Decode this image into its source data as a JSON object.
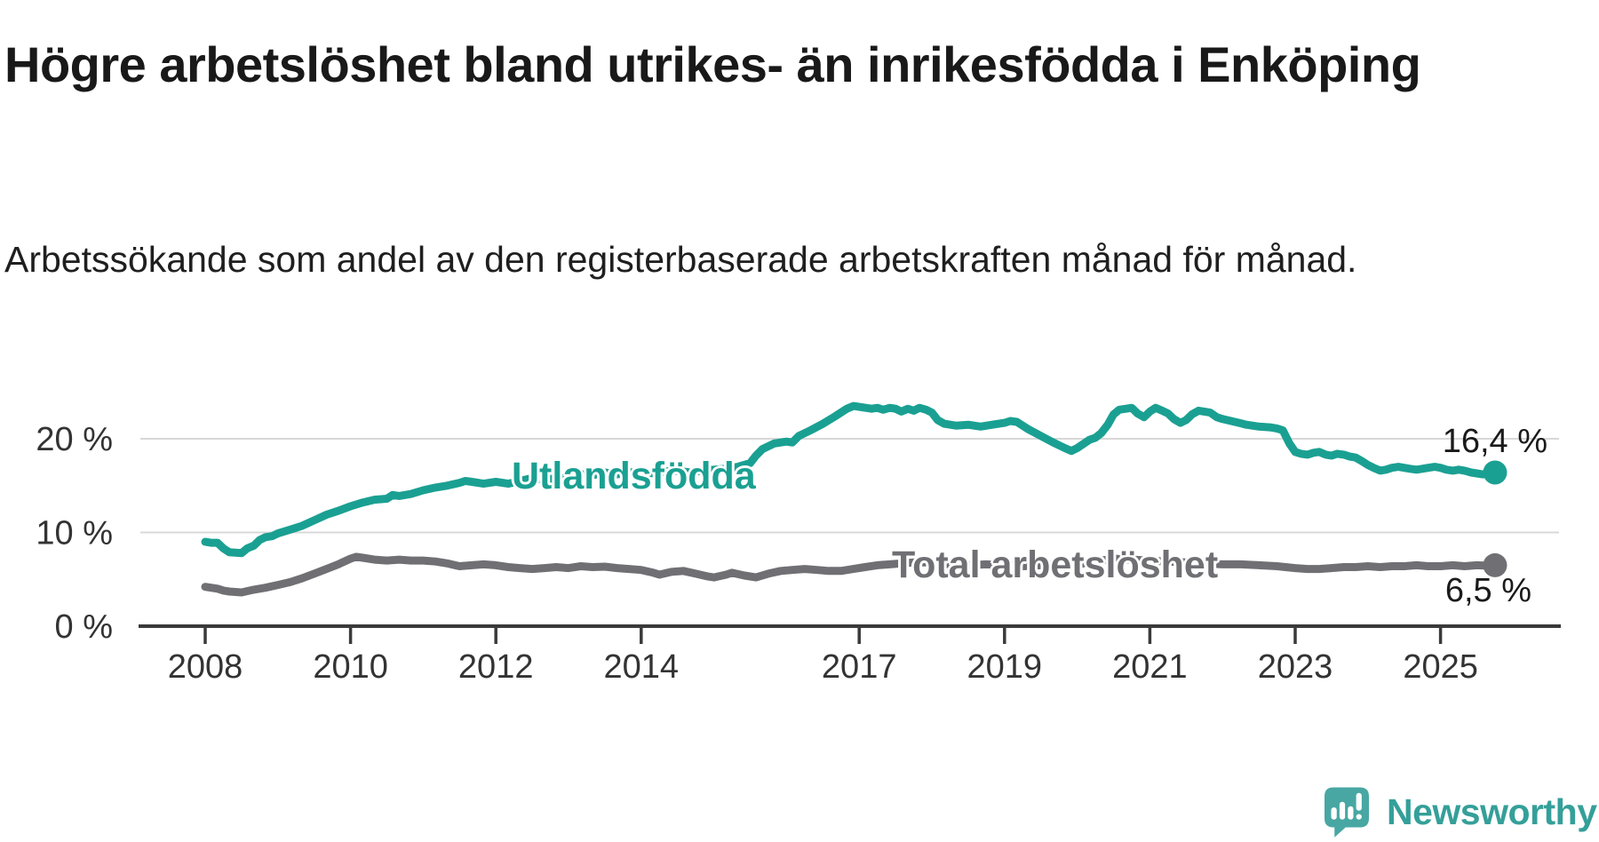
{
  "header": {
    "title": "Högre arbetslöshet bland utrikes- än inrikesfödda i Enköping",
    "subtitle": "Arbetssökande som andel av den registerbaserade arbetskraften månad för månad."
  },
  "colors": {
    "teal": "#1aa092",
    "gray": "#6f6f74",
    "grid": "#d8d8d8",
    "axis": "#3a3a3a",
    "tick_text": "#333333",
    "value_text": "#1a1a1a",
    "logo_icon": "#48a7a3",
    "logo_word": "#359f99"
  },
  "chart_data": {
    "type": "line",
    "unit": "%",
    "grid": true,
    "legend": "inline-labels-on-lines",
    "ylim": [
      0,
      25
    ],
    "xlim": [
      2007.1,
      2026.6
    ],
    "y_ticks": [
      {
        "value": 20,
        "label": "20 %"
      },
      {
        "value": 10,
        "label": "10 %"
      },
      {
        "value": 0,
        "label": "0 %"
      }
    ],
    "x_ticks": [
      {
        "value": 2008,
        "label": "2008"
      },
      {
        "value": 2010,
        "label": "2010"
      },
      {
        "value": 2012,
        "label": "2012"
      },
      {
        "value": 2014,
        "label": "2014"
      },
      {
        "value": 2017,
        "label": "2017"
      },
      {
        "value": 2019,
        "label": "2019"
      },
      {
        "value": 2021,
        "label": "2021"
      },
      {
        "value": 2023,
        "label": "2023"
      },
      {
        "value": 2025,
        "label": "2025"
      }
    ],
    "series": [
      {
        "name": "Utlandsfödda",
        "color_key": "teal",
        "end_value_label": "16,4 %",
        "points": [
          [
            2008.0,
            9.0
          ],
          [
            2008.08,
            8.9
          ],
          [
            2008.17,
            8.9
          ],
          [
            2008.25,
            8.3
          ],
          [
            2008.33,
            7.9
          ],
          [
            2008.5,
            7.8
          ],
          [
            2008.58,
            8.3
          ],
          [
            2008.67,
            8.6
          ],
          [
            2008.75,
            9.2
          ],
          [
            2008.83,
            9.5
          ],
          [
            2008.92,
            9.6
          ],
          [
            2009.0,
            9.9
          ],
          [
            2009.17,
            10.3
          ],
          [
            2009.33,
            10.7
          ],
          [
            2009.5,
            11.3
          ],
          [
            2009.67,
            11.9
          ],
          [
            2009.83,
            12.3
          ],
          [
            2010.0,
            12.8
          ],
          [
            2010.17,
            13.2
          ],
          [
            2010.33,
            13.5
          ],
          [
            2010.5,
            13.6
          ],
          [
            2010.58,
            14.0
          ],
          [
            2010.67,
            13.9
          ],
          [
            2010.83,
            14.1
          ],
          [
            2011.0,
            14.5
          ],
          [
            2011.17,
            14.8
          ],
          [
            2011.33,
            15.0
          ],
          [
            2011.5,
            15.3
          ],
          [
            2011.58,
            15.5
          ],
          [
            2011.67,
            15.4
          ],
          [
            2011.83,
            15.2
          ],
          [
            2012.0,
            15.4
          ],
          [
            2012.17,
            15.2
          ],
          [
            2012.33,
            15.5
          ],
          [
            2012.5,
            15.8
          ],
          [
            2012.67,
            15.6
          ],
          [
            2012.83,
            15.8
          ],
          [
            2013.0,
            16.0
          ],
          [
            2013.17,
            16.2
          ],
          [
            2013.33,
            16.1
          ],
          [
            2013.5,
            16.4
          ],
          [
            2013.67,
            16.2
          ],
          [
            2013.83,
            16.4
          ],
          [
            2014.0,
            16.5
          ],
          [
            2014.17,
            16.3
          ],
          [
            2014.33,
            16.5
          ],
          [
            2014.5,
            16.6
          ],
          [
            2014.67,
            16.4
          ],
          [
            2014.83,
            16.6
          ],
          [
            2015.0,
            16.7
          ],
          [
            2015.17,
            16.8
          ],
          [
            2015.33,
            17.0
          ],
          [
            2015.5,
            17.4
          ],
          [
            2015.58,
            18.2
          ],
          [
            2015.67,
            18.9
          ],
          [
            2015.83,
            19.5
          ],
          [
            2016.0,
            19.7
          ],
          [
            2016.08,
            19.6
          ],
          [
            2016.17,
            20.3
          ],
          [
            2016.33,
            20.9
          ],
          [
            2016.5,
            21.6
          ],
          [
            2016.67,
            22.4
          ],
          [
            2016.83,
            23.2
          ],
          [
            2016.92,
            23.5
          ],
          [
            2017.0,
            23.4
          ],
          [
            2017.17,
            23.2
          ],
          [
            2017.25,
            23.3
          ],
          [
            2017.33,
            23.1
          ],
          [
            2017.42,
            23.3
          ],
          [
            2017.5,
            23.2
          ],
          [
            2017.58,
            22.9
          ],
          [
            2017.67,
            23.2
          ],
          [
            2017.75,
            23.0
          ],
          [
            2017.83,
            23.3
          ],
          [
            2017.92,
            23.1
          ],
          [
            2018.0,
            22.8
          ],
          [
            2018.08,
            22.0
          ],
          [
            2018.17,
            21.6
          ],
          [
            2018.33,
            21.4
          ],
          [
            2018.5,
            21.5
          ],
          [
            2018.67,
            21.3
          ],
          [
            2018.83,
            21.5
          ],
          [
            2019.0,
            21.7
          ],
          [
            2019.08,
            21.9
          ],
          [
            2019.17,
            21.8
          ],
          [
            2019.33,
            21.0
          ],
          [
            2019.5,
            20.3
          ],
          [
            2019.67,
            19.6
          ],
          [
            2019.83,
            19.0
          ],
          [
            2019.92,
            18.7
          ],
          [
            2020.0,
            19.0
          ],
          [
            2020.17,
            19.9
          ],
          [
            2020.25,
            20.1
          ],
          [
            2020.33,
            20.6
          ],
          [
            2020.42,
            21.5
          ],
          [
            2020.5,
            22.6
          ],
          [
            2020.58,
            23.1
          ],
          [
            2020.67,
            23.2
          ],
          [
            2020.75,
            23.3
          ],
          [
            2020.83,
            22.7
          ],
          [
            2020.92,
            22.3
          ],
          [
            2021.0,
            22.9
          ],
          [
            2021.08,
            23.3
          ],
          [
            2021.17,
            23.0
          ],
          [
            2021.25,
            22.7
          ],
          [
            2021.33,
            22.1
          ],
          [
            2021.42,
            21.7
          ],
          [
            2021.5,
            22.0
          ],
          [
            2021.58,
            22.6
          ],
          [
            2021.67,
            23.0
          ],
          [
            2021.75,
            22.9
          ],
          [
            2021.83,
            22.8
          ],
          [
            2021.92,
            22.3
          ],
          [
            2022.0,
            22.1
          ],
          [
            2022.17,
            21.8
          ],
          [
            2022.33,
            21.5
          ],
          [
            2022.5,
            21.3
          ],
          [
            2022.67,
            21.2
          ],
          [
            2022.75,
            21.1
          ],
          [
            2022.83,
            20.9
          ],
          [
            2022.92,
            19.5
          ],
          [
            2023.0,
            18.6
          ],
          [
            2023.08,
            18.4
          ],
          [
            2023.17,
            18.3
          ],
          [
            2023.25,
            18.5
          ],
          [
            2023.33,
            18.6
          ],
          [
            2023.42,
            18.3
          ],
          [
            2023.5,
            18.2
          ],
          [
            2023.58,
            18.4
          ],
          [
            2023.67,
            18.3
          ],
          [
            2023.75,
            18.1
          ],
          [
            2023.83,
            18.0
          ],
          [
            2023.92,
            17.6
          ],
          [
            2024.0,
            17.2
          ],
          [
            2024.08,
            16.9
          ],
          [
            2024.17,
            16.6
          ],
          [
            2024.25,
            16.7
          ],
          [
            2024.33,
            16.9
          ],
          [
            2024.42,
            17.0
          ],
          [
            2024.5,
            16.9
          ],
          [
            2024.58,
            16.8
          ],
          [
            2024.67,
            16.7
          ],
          [
            2024.75,
            16.8
          ],
          [
            2024.83,
            16.9
          ],
          [
            2024.92,
            17.0
          ],
          [
            2025.0,
            16.9
          ],
          [
            2025.08,
            16.7
          ],
          [
            2025.17,
            16.6
          ],
          [
            2025.25,
            16.7
          ],
          [
            2025.33,
            16.6
          ],
          [
            2025.42,
            16.4
          ],
          [
            2025.5,
            16.3
          ],
          [
            2025.58,
            16.2
          ],
          [
            2025.67,
            16.3
          ],
          [
            2025.75,
            16.4
          ]
        ]
      },
      {
        "name": "Total arbetslöshet",
        "color_key": "gray",
        "end_value_label": "6,5 %",
        "points": [
          [
            2008.0,
            4.2
          ],
          [
            2008.08,
            4.1
          ],
          [
            2008.17,
            4.0
          ],
          [
            2008.25,
            3.8
          ],
          [
            2008.33,
            3.7
          ],
          [
            2008.5,
            3.6
          ],
          [
            2008.67,
            3.9
          ],
          [
            2008.83,
            4.1
          ],
          [
            2009.0,
            4.4
          ],
          [
            2009.17,
            4.7
          ],
          [
            2009.33,
            5.1
          ],
          [
            2009.5,
            5.6
          ],
          [
            2009.67,
            6.1
          ],
          [
            2009.83,
            6.6
          ],
          [
            2010.0,
            7.2
          ],
          [
            2010.08,
            7.4
          ],
          [
            2010.17,
            7.3
          ],
          [
            2010.33,
            7.1
          ],
          [
            2010.5,
            7.0
          ],
          [
            2010.67,
            7.1
          ],
          [
            2010.83,
            7.0
          ],
          [
            2011.0,
            7.0
          ],
          [
            2011.17,
            6.9
          ],
          [
            2011.33,
            6.7
          ],
          [
            2011.5,
            6.4
          ],
          [
            2011.67,
            6.5
          ],
          [
            2011.83,
            6.6
          ],
          [
            2012.0,
            6.5
          ],
          [
            2012.17,
            6.3
          ],
          [
            2012.33,
            6.2
          ],
          [
            2012.5,
            6.1
          ],
          [
            2012.67,
            6.2
          ],
          [
            2012.83,
            6.3
          ],
          [
            2013.0,
            6.2
          ],
          [
            2013.17,
            6.4
          ],
          [
            2013.33,
            6.3
          ],
          [
            2013.5,
            6.35
          ],
          [
            2013.67,
            6.2
          ],
          [
            2013.83,
            6.1
          ],
          [
            2014.0,
            6.0
          ],
          [
            2014.17,
            5.7
          ],
          [
            2014.25,
            5.5
          ],
          [
            2014.42,
            5.8
          ],
          [
            2014.58,
            5.9
          ],
          [
            2014.75,
            5.6
          ],
          [
            2014.92,
            5.3
          ],
          [
            2015.0,
            5.2
          ],
          [
            2015.17,
            5.5
          ],
          [
            2015.25,
            5.7
          ],
          [
            2015.42,
            5.4
          ],
          [
            2015.58,
            5.2
          ],
          [
            2015.75,
            5.6
          ],
          [
            2015.92,
            5.9
          ],
          [
            2016.08,
            6.0
          ],
          [
            2016.25,
            6.1
          ],
          [
            2016.42,
            6.0
          ],
          [
            2016.58,
            5.9
          ],
          [
            2016.75,
            5.9
          ],
          [
            2016.92,
            6.1
          ],
          [
            2017.08,
            6.3
          ],
          [
            2017.25,
            6.5
          ],
          [
            2017.42,
            6.6
          ],
          [
            2017.58,
            6.7
          ],
          [
            2017.75,
            6.8
          ],
          [
            2017.92,
            6.8
          ],
          [
            2018.08,
            6.7
          ],
          [
            2018.25,
            6.6
          ],
          [
            2018.5,
            6.5
          ],
          [
            2018.75,
            6.6
          ],
          [
            2019.0,
            6.5
          ],
          [
            2019.25,
            6.4
          ],
          [
            2019.5,
            6.5
          ],
          [
            2019.75,
            6.6
          ],
          [
            2020.0,
            6.6
          ],
          [
            2020.25,
            6.9
          ],
          [
            2020.5,
            7.2
          ],
          [
            2020.75,
            7.1
          ],
          [
            2021.0,
            7.0
          ],
          [
            2021.25,
            6.9
          ],
          [
            2021.5,
            6.8
          ],
          [
            2021.75,
            6.7
          ],
          [
            2022.0,
            6.6
          ],
          [
            2022.25,
            6.6
          ],
          [
            2022.5,
            6.5
          ],
          [
            2022.75,
            6.4
          ],
          [
            2023.0,
            6.2
          ],
          [
            2023.17,
            6.1
          ],
          [
            2023.33,
            6.1
          ],
          [
            2023.5,
            6.2
          ],
          [
            2023.67,
            6.3
          ],
          [
            2023.83,
            6.3
          ],
          [
            2024.0,
            6.4
          ],
          [
            2024.17,
            6.3
          ],
          [
            2024.33,
            6.4
          ],
          [
            2024.5,
            6.4
          ],
          [
            2024.67,
            6.5
          ],
          [
            2024.83,
            6.4
          ],
          [
            2025.0,
            6.4
          ],
          [
            2025.17,
            6.5
          ],
          [
            2025.33,
            6.4
          ],
          [
            2025.5,
            6.5
          ],
          [
            2025.67,
            6.45
          ],
          [
            2025.75,
            6.5
          ]
        ]
      }
    ]
  },
  "footer": {
    "brand": "Newsworthy",
    "logo_icon": "newsworthy-speech-bubble-chart-icon"
  }
}
